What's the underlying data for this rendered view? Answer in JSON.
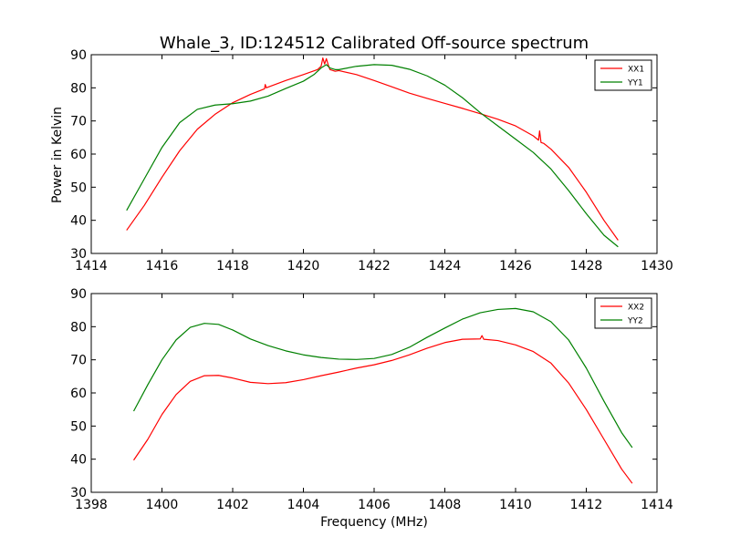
{
  "figure": {
    "title": "Whale_3, ID:124512 Calibrated Off-source spectrum",
    "ylabel": "Power in Kelvin",
    "xlabel": "Frequency (MHz)"
  },
  "chart_data": [
    {
      "type": "line",
      "title": "Whale_3, ID:124512 Calibrated Off-source spectrum",
      "xlabel": "",
      "ylabel": "Power in Kelvin",
      "xlim": [
        1414,
        1430
      ],
      "ylim": [
        30,
        90
      ],
      "xticks": [
        "1414",
        "1416",
        "1418",
        "1420",
        "1422",
        "1424",
        "1426",
        "1428",
        "1430"
      ],
      "yticks": [
        "30",
        "40",
        "50",
        "60",
        "70",
        "80",
        "90"
      ],
      "grid": false,
      "legend_position": "top-right",
      "series": [
        {
          "name": "XX1",
          "color": "#ff0000",
          "x": [
            1415.0,
            1415.5,
            1416.0,
            1416.5,
            1417.0,
            1417.5,
            1418.0,
            1418.5,
            1418.9,
            1418.92,
            1418.95,
            1419.0,
            1419.5,
            1420.0,
            1420.4,
            1420.5,
            1420.55,
            1420.6,
            1420.65,
            1420.7,
            1420.75,
            1420.9,
            1421.0,
            1421.5,
            1422.0,
            1422.5,
            1423.0,
            1423.5,
            1424.0,
            1424.5,
            1425.0,
            1425.5,
            1426.0,
            1426.5,
            1426.65,
            1426.68,
            1426.72,
            1426.8,
            1427.0,
            1427.5,
            1428.0,
            1428.5,
            1428.9
          ],
          "y": [
            37.0,
            44.5,
            53.0,
            61.0,
            67.5,
            72.0,
            75.5,
            78.0,
            79.7,
            81.0,
            80.0,
            80.2,
            82.2,
            84.0,
            85.5,
            86.5,
            89.0,
            87.2,
            88.8,
            87.0,
            85.5,
            85.0,
            85.2,
            84.0,
            82.2,
            80.3,
            78.4,
            76.8,
            75.3,
            73.8,
            72.2,
            70.5,
            68.5,
            65.5,
            64.2,
            67.0,
            63.5,
            63.2,
            61.5,
            56.0,
            48.5,
            40.0,
            34.0
          ]
        },
        {
          "name": "YY1",
          "color": "#008000",
          "x": [
            1415.0,
            1415.5,
            1416.0,
            1416.5,
            1417.0,
            1417.5,
            1418.0,
            1418.5,
            1419.0,
            1419.5,
            1420.0,
            1420.3,
            1420.5,
            1420.65,
            1420.75,
            1420.9,
            1421.0,
            1421.5,
            1422.0,
            1422.5,
            1423.0,
            1423.5,
            1424.0,
            1424.5,
            1425.0,
            1425.5,
            1426.0,
            1426.5,
            1427.0,
            1427.5,
            1428.0,
            1428.5,
            1428.9
          ],
          "y": [
            43.0,
            52.5,
            62.0,
            69.5,
            73.5,
            74.8,
            75.2,
            76.0,
            77.5,
            79.8,
            82.0,
            84.0,
            86.0,
            87.0,
            86.0,
            85.5,
            85.5,
            86.5,
            87.0,
            86.8,
            85.6,
            83.6,
            80.8,
            77.0,
            72.5,
            68.5,
            64.5,
            60.5,
            55.5,
            49.0,
            42.0,
            35.5,
            32.0
          ]
        }
      ]
    },
    {
      "type": "line",
      "title": "",
      "xlabel": "Frequency (MHz)",
      "ylabel": "",
      "xlim": [
        1398,
        1414
      ],
      "ylim": [
        30,
        90
      ],
      "xticks": [
        "1398",
        "1400",
        "1402",
        "1404",
        "1406",
        "1408",
        "1410",
        "1412",
        "1414"
      ],
      "yticks": [
        "30",
        "40",
        "50",
        "60",
        "70",
        "80",
        "90"
      ],
      "grid": false,
      "legend_position": "top-right",
      "series": [
        {
          "name": "XX2",
          "color": "#ff0000",
          "x": [
            1399.2,
            1399.6,
            1400.0,
            1400.4,
            1400.8,
            1401.2,
            1401.6,
            1402.0,
            1402.5,
            1403.0,
            1403.5,
            1404.0,
            1404.5,
            1405.0,
            1405.5,
            1406.0,
            1406.5,
            1407.0,
            1407.5,
            1408.0,
            1408.5,
            1409.0,
            1409.05,
            1409.1,
            1409.5,
            1410.0,
            1410.5,
            1411.0,
            1411.5,
            1412.0,
            1412.5,
            1413.0,
            1413.3
          ],
          "y": [
            39.7,
            46.0,
            53.5,
            59.5,
            63.5,
            65.2,
            65.3,
            64.5,
            63.2,
            62.8,
            63.1,
            64.0,
            65.2,
            66.3,
            67.5,
            68.5,
            69.8,
            71.5,
            73.5,
            75.2,
            76.2,
            76.3,
            77.3,
            76.2,
            75.8,
            74.5,
            72.5,
            69.0,
            63.0,
            55.0,
            46.0,
            37.0,
            32.7
          ]
        },
        {
          "name": "YY2",
          "color": "#008000",
          "x": [
            1399.2,
            1399.6,
            1400.0,
            1400.4,
            1400.8,
            1401.2,
            1401.6,
            1402.0,
            1402.5,
            1403.0,
            1403.5,
            1404.0,
            1404.5,
            1405.0,
            1405.5,
            1406.0,
            1406.5,
            1407.0,
            1407.5,
            1408.0,
            1408.5,
            1409.0,
            1409.5,
            1410.0,
            1410.5,
            1411.0,
            1411.5,
            1412.0,
            1412.5,
            1413.0,
            1413.3
          ],
          "y": [
            54.5,
            62.5,
            70.0,
            76.0,
            79.8,
            81.0,
            80.7,
            79.0,
            76.3,
            74.3,
            72.7,
            71.5,
            70.7,
            70.2,
            70.1,
            70.4,
            71.6,
            73.8,
            76.8,
            79.6,
            82.3,
            84.2,
            85.2,
            85.5,
            84.5,
            81.5,
            76.0,
            67.5,
            57.5,
            48.0,
            43.5
          ]
        }
      ]
    }
  ]
}
